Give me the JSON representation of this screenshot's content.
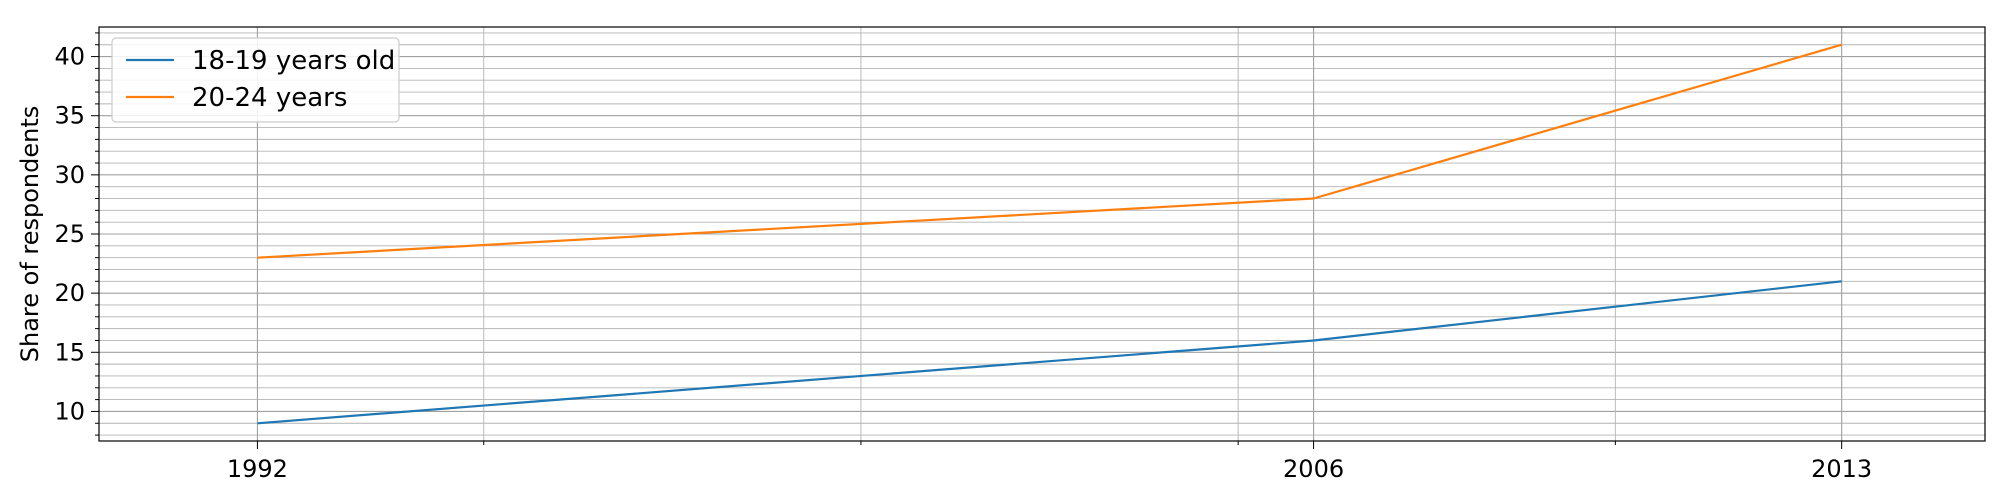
{
  "chart_data": {
    "type": "line",
    "title": "",
    "xlabel": "",
    "ylabel": "Share of respondents",
    "x": [
      1992,
      2006,
      2013
    ],
    "x_ticks": [
      "1992",
      "2006",
      "2013"
    ],
    "xlim": [
      1989.9,
      2014.9
    ],
    "ylim": [
      7.5,
      42.5
    ],
    "y_ticks": [
      10,
      15,
      20,
      25,
      30,
      35,
      40
    ],
    "grid": true,
    "legend_position": "top-left",
    "series": [
      {
        "name": "18-19 years old",
        "color": "#1f77b4",
        "values": [
          9,
          16,
          21
        ]
      },
      {
        "name": "20-24 years",
        "color": "#ff7f0e",
        "values": [
          23,
          28,
          41
        ]
      }
    ]
  }
}
